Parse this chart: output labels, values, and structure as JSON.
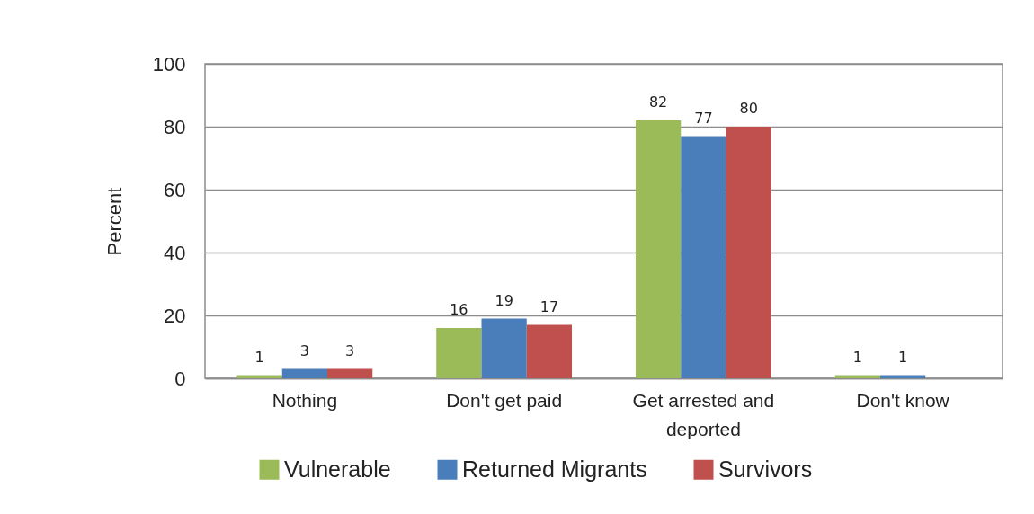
{
  "chart_data": {
    "type": "bar",
    "ylabel": "Percent",
    "categories": [
      "Nothing",
      "Don't get paid",
      "Get arrested and deported",
      "Don't know"
    ],
    "series": [
      {
        "name": "Vulnerable",
        "color": "#9bbb59",
        "values": [
          1,
          16,
          82,
          1
        ]
      },
      {
        "name": "Returned Migrants",
        "color": "#4a7ebb",
        "values": [
          3,
          19,
          77,
          1
        ]
      },
      {
        "name": "Survivors",
        "color": "#c0504d",
        "values": [
          3,
          17,
          80,
          null
        ]
      }
    ],
    "ylim": [
      0,
      100
    ],
    "yticks": [
      0,
      20,
      40,
      60,
      80,
      100
    ],
    "grid": "y",
    "legend": "bottom",
    "data_labels": true
  }
}
